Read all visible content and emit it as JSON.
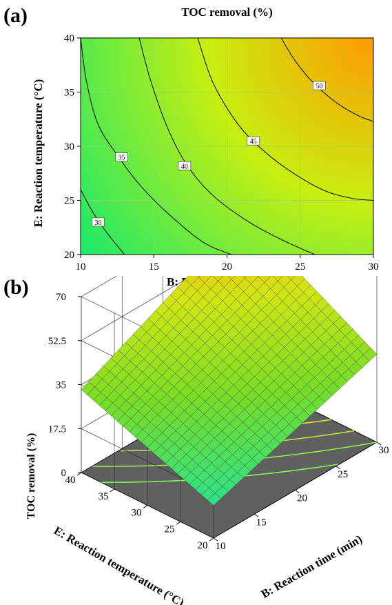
{
  "panels": {
    "a": "(a)",
    "b": "(b)"
  },
  "chart_data": [
    {
      "type": "contour",
      "title": "TOC removal (%)",
      "xlabel": "B: Reaction time (min)",
      "ylabel": "E: Reaction temperature (°C)",
      "xlim": [
        10,
        30
      ],
      "ylim": [
        20,
        40
      ],
      "x_ticks": [
        10,
        15,
        20,
        25,
        30
      ],
      "y_ticks": [
        20,
        25,
        30,
        35,
        40
      ],
      "contours": [
        {
          "level": 30,
          "label": "30",
          "label_at": [
            11.2,
            23.0
          ],
          "points": [
            [
              10,
              26.0
            ],
            [
              10.8,
              24.0
            ],
            [
              11.8,
              22.0
            ],
            [
              13.0,
              20.0
            ]
          ]
        },
        {
          "level": 35,
          "label": "35",
          "label_at": [
            12.8,
            29.0
          ],
          "points": [
            [
              10.0,
              40.0
            ],
            [
              10.4,
              36.0
            ],
            [
              11.2,
              32.0
            ],
            [
              12.6,
              29.0
            ],
            [
              14.0,
              26.5
            ],
            [
              15.8,
              24.0
            ],
            [
              18.3,
              21.2
            ],
            [
              20.3,
              20.0
            ]
          ]
        },
        {
          "level": 40,
          "label": "40",
          "label_at": [
            17.1,
            28.2
          ],
          "points": [
            [
              14.0,
              40.0
            ],
            [
              14.8,
              36.0
            ],
            [
              16.0,
              31.5
            ],
            [
              17.3,
              28.2
            ],
            [
              19.0,
              25.5
            ],
            [
              21.5,
              23.0
            ],
            [
              24.0,
              21.2
            ],
            [
              26.0,
              20.0
            ]
          ]
        },
        {
          "level": 45,
          "label": "45",
          "label_at": [
            21.8,
            30.5
          ],
          "points": [
            [
              18.0,
              40.0
            ],
            [
              19.0,
              36.0
            ],
            [
              20.5,
              32.5
            ],
            [
              22.0,
              30.2
            ],
            [
              24.0,
              28.0
            ],
            [
              26.5,
              26.0
            ],
            [
              28.5,
              25.2
            ],
            [
              30.0,
              25.0
            ]
          ]
        },
        {
          "level": 50,
          "label": "50",
          "label_at": [
            26.3,
            35.6
          ],
          "points": [
            [
              23.7,
              40.0
            ],
            [
              24.6,
              38.0
            ],
            [
              25.8,
              36.0
            ],
            [
              27.5,
              34.0
            ],
            [
              29.0,
              32.8
            ],
            [
              30.0,
              32.3
            ]
          ]
        }
      ],
      "colors": {
        "low": "#19e86c",
        "mid": "#c8ee10",
        "high": "#ff9a00"
      }
    },
    {
      "type": "surface3d",
      "zlabel": "TOC removal (%)",
      "xlabel": "B: Reaction time (min)",
      "ylabel": "E: Reaction temperature (°C)",
      "x_ticks": [
        10,
        15,
        20,
        25,
        30
      ],
      "y_ticks": [
        20,
        25,
        30,
        35,
        40
      ],
      "z_ticks": [
        0,
        17.5,
        35,
        52.5,
        70
      ],
      "zlim": [
        0,
        70
      ],
      "corners": {
        "x10_y20": 13,
        "x30_y20": 35,
        "x10_y40": 33,
        "x30_y40": 64
      },
      "floor_contour_levels": [
        30,
        35,
        40,
        45,
        50
      ]
    }
  ]
}
